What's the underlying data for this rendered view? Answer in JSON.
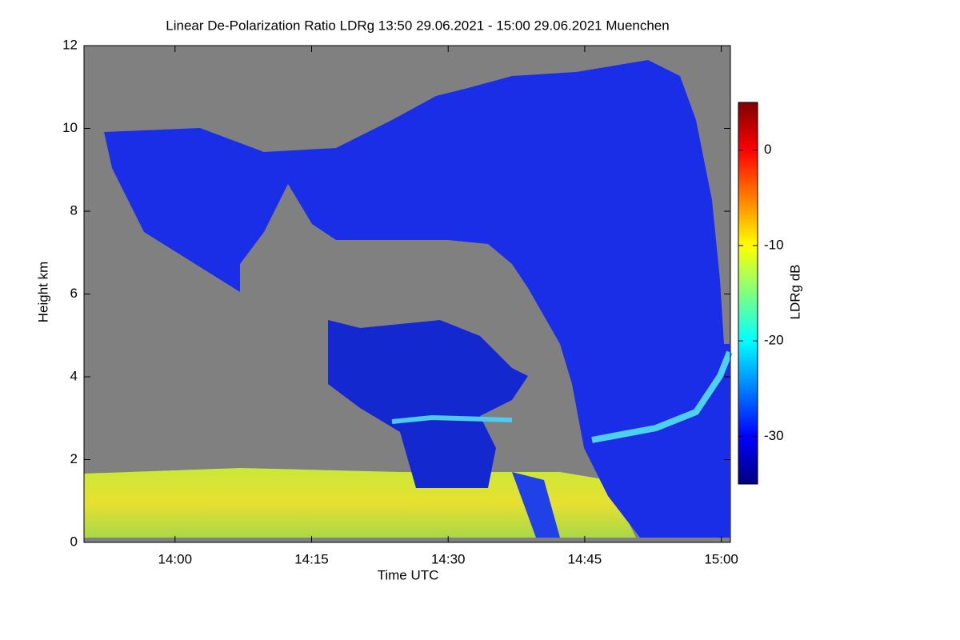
{
  "chart_data": {
    "type": "heatmap",
    "title": "Linear De-Polarization Ratio LDRg   13:50 29.06.2021 - 15:00 29.06.2021 Muenchen",
    "xlabel": "Time UTC",
    "ylabel": "Height km",
    "xlim": [
      "13:50",
      "15:01"
    ],
    "xticks": [
      "14:00",
      "14:15",
      "14:30",
      "14:45",
      "15:00"
    ],
    "ylim": [
      0,
      12
    ],
    "yticks": [
      0,
      2,
      4,
      6,
      8,
      10,
      12
    ],
    "colorbar": {
      "label": "LDRg dB",
      "lim": [
        -35,
        5
      ],
      "ticks": [
        -30,
        -20,
        -10,
        0
      ],
      "colormap": "jet"
    },
    "background": "#808080"
  }
}
